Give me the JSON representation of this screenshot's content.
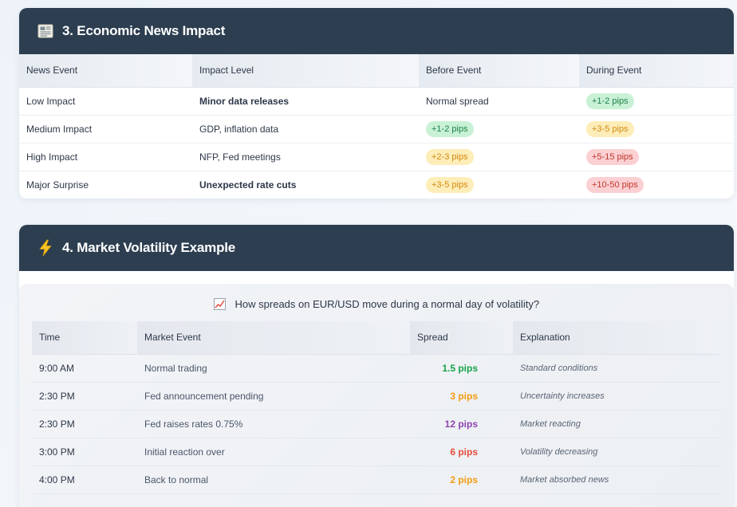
{
  "section3": {
    "title": "3. Economic News Impact",
    "icon": "newspaper-icon",
    "headers": [
      "News Event",
      "Impact Level",
      "Before Event",
      "During Event"
    ],
    "rows": [
      {
        "event": "Low Impact",
        "level": "Minor data releases",
        "level_color": "green",
        "before": "Normal spread",
        "before_pill": "",
        "during": "+1-2 pips",
        "during_pill": "g"
      },
      {
        "event": "Medium Impact",
        "level": "GDP, inflation data",
        "level_color": "orange",
        "before": "+1-2 pips",
        "before_pill": "g",
        "during": "+3-5 pips",
        "during_pill": "y"
      },
      {
        "event": "High Impact",
        "level": "NFP, Fed meetings",
        "level_color": "red",
        "before": "+2-3 pips",
        "before_pill": "y",
        "during": "+5-15 pips",
        "during_pill": "r"
      },
      {
        "event": "Major Surprise",
        "level": "Unexpected rate cuts",
        "level_color": "purple",
        "before": "+3-5 pips",
        "before_pill": "y",
        "during": "+10-50 pips",
        "during_pill": "r"
      }
    ]
  },
  "section4": {
    "title": "4. Market Volatility Example",
    "icon": "lightning-icon",
    "question": "How spreads on EUR/USD move during a normal day of volatility?",
    "question_icon": "chart-icon",
    "headers": [
      "Time",
      "Market Event",
      "Spread",
      "Explanation"
    ],
    "rows": [
      {
        "time": "9:00 AM",
        "event": "Normal trading",
        "spread": "1.5 pips",
        "spread_color": "#16a34a",
        "explanation": "Standard conditions"
      },
      {
        "time": "2:30 PM",
        "event": "Fed announcement pending",
        "spread": "3 pips",
        "spread_color": "#f39c12",
        "explanation": "Uncertainty increases"
      },
      {
        "time": "2:30 PM",
        "event": "Fed raises rates 0.75%",
        "spread": "12 pips",
        "spread_color": "#8e44ad",
        "explanation": "Market reacting"
      },
      {
        "time": "3:00 PM",
        "event": "Initial reaction over",
        "spread": "6 pips",
        "spread_color": "#e74c3c",
        "explanation": "Volatility decreasing"
      },
      {
        "time": "4:00 PM",
        "event": "Back to normal",
        "spread": "2 pips",
        "spread_color": "#f39c12",
        "explanation": "Market absorbed news"
      }
    ]
  }
}
